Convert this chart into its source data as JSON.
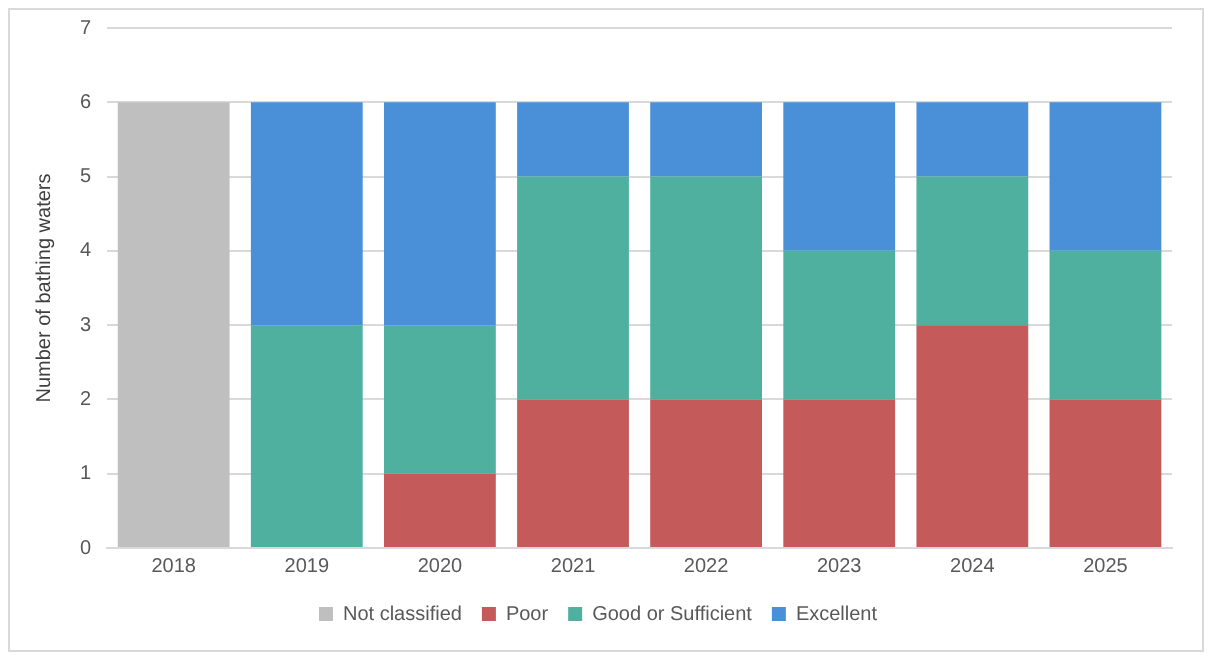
{
  "chart_data": {
    "type": "bar",
    "stacked": true,
    "ylabel": "Number of bathing waters",
    "categories": [
      "2018",
      "2019",
      "2020",
      "2021",
      "2022",
      "2023",
      "2024",
      "2025"
    ],
    "series": [
      {
        "name": "Not classified",
        "color": "#bfbfbf",
        "values": [
          6,
          0,
          0,
          0,
          0,
          0,
          0,
          0
        ]
      },
      {
        "name": "Poor",
        "color": "#c55a5a",
        "values": [
          0,
          0,
          1,
          2,
          2,
          2,
          3,
          2
        ]
      },
      {
        "name": "Good or Sufficient",
        "color": "#4fb0a0",
        "values": [
          0,
          3,
          2,
          3,
          3,
          2,
          2,
          2
        ]
      },
      {
        "name": "Excellent",
        "color": "#4a90d9",
        "values": [
          0,
          3,
          3,
          1,
          1,
          2,
          1,
          2
        ]
      }
    ],
    "ylim": [
      0,
      7
    ],
    "yticks": [
      0,
      1,
      2,
      3,
      4,
      5,
      6,
      7
    ],
    "grid": "y",
    "legend": "bottom"
  }
}
